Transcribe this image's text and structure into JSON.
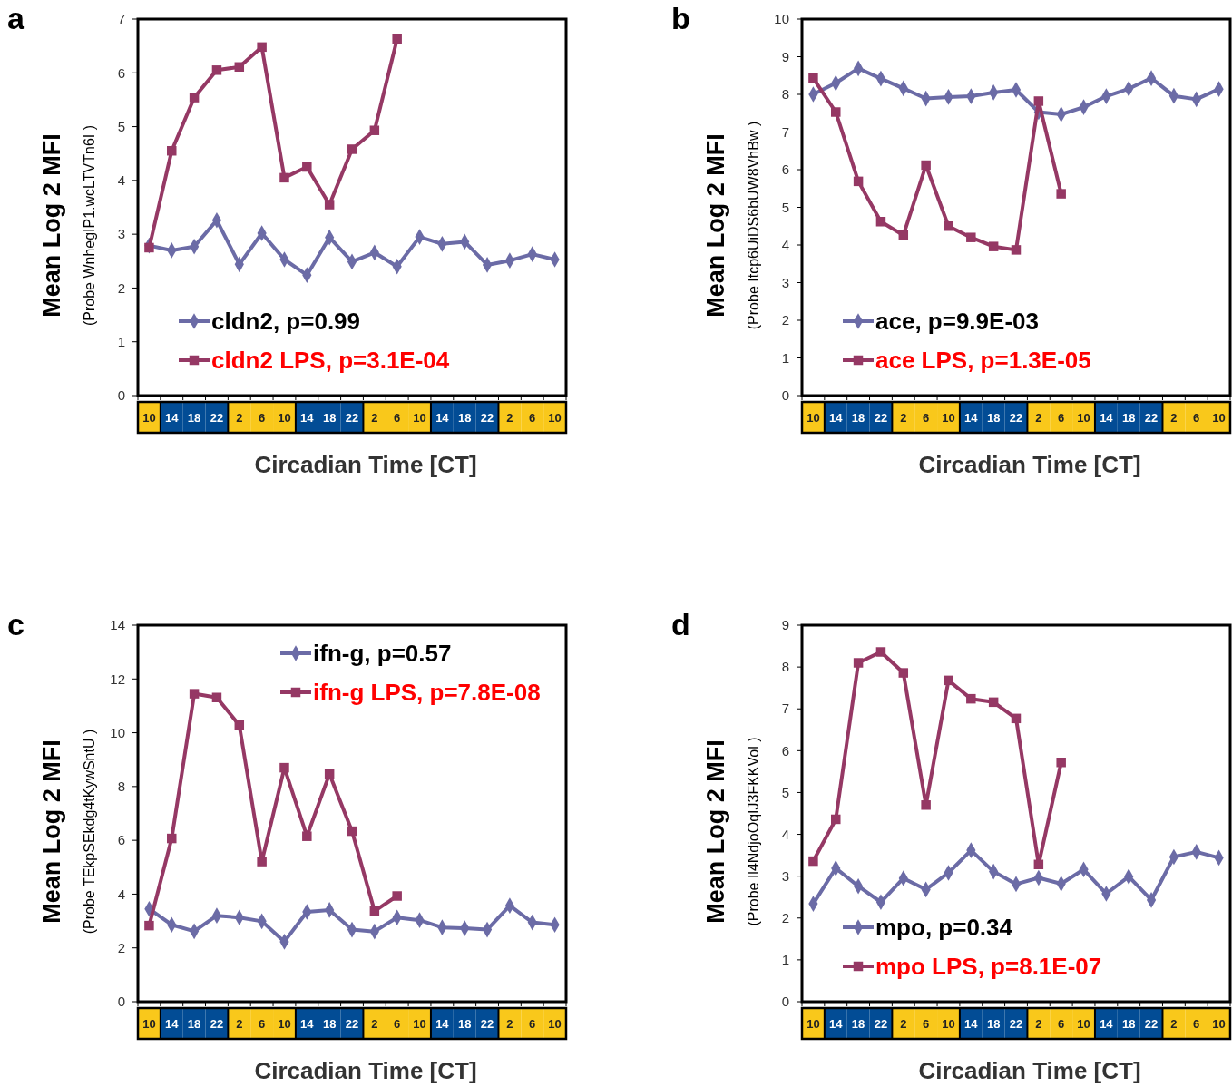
{
  "chart_data": [
    {
      "type": "line",
      "title": "a",
      "xlabel": "Circadian Time [CT]",
      "ylabel": "Mean Log 2 MFI\n(Probe WnhegIP1.wcLTVTn6I )",
      "categories": [
        "10",
        "14",
        "18",
        "22",
        "2",
        "6",
        "10",
        "14",
        "18",
        "22",
        "2",
        "6",
        "10",
        "14",
        "18",
        "22",
        "2",
        "6",
        "10"
      ],
      "series": [
        {
          "name": "cldn2, p=0.99",
          "color": "#6b6ba6",
          "marker": "diamond",
          "values": [
            2.79,
            2.7,
            2.77,
            3.26,
            2.44,
            3.02,
            2.53,
            2.24,
            2.94,
            2.49,
            2.66,
            2.4,
            2.95,
            2.82,
            2.86,
            2.43,
            2.51,
            2.63,
            2.53
          ]
        },
        {
          "name": "cldn2 LPS, p=3.1E-04",
          "color": "#953864",
          "marker": "square",
          "values": [
            2.75,
            4.55,
            5.54,
            6.05,
            6.11,
            6.48,
            4.05,
            4.25,
            3.55,
            4.58,
            4.93,
            6.63,
            null,
            null,
            null,
            null,
            null,
            null,
            null
          ]
        }
      ],
      "ylim": [
        0,
        7
      ],
      "yticks": [
        0,
        1,
        2,
        3,
        4,
        5,
        6,
        7
      ],
      "grid": false,
      "legend": "bottom left"
    },
    {
      "type": "line",
      "title": "b",
      "xlabel": "Circadian Time [CT]",
      "ylabel": "Mean Log 2 MFI\n(Probe Itcp6UiDS6bUW8VhBw )",
      "categories": [
        "10",
        "14",
        "18",
        "22",
        "2",
        "6",
        "10",
        "14",
        "18",
        "22",
        "2",
        "6",
        "10",
        "14",
        "18",
        "22",
        "2",
        "6",
        "10"
      ],
      "series": [
        {
          "name": "ace, p=9.9E-03",
          "color": "#6b6ba6",
          "marker": "diamond",
          "values": [
            8.0,
            8.3,
            8.69,
            8.42,
            8.16,
            7.89,
            7.93,
            7.95,
            8.05,
            8.12,
            7.53,
            7.47,
            7.66,
            7.95,
            8.15,
            8.43,
            7.96,
            7.87,
            8.14
          ]
        },
        {
          "name": "ace LPS, p=1.3E-05",
          "color": "#953864",
          "marker": "square",
          "values": [
            8.43,
            7.53,
            5.69,
            4.62,
            4.26,
            6.12,
            4.5,
            4.2,
            3.96,
            3.87,
            7.82,
            5.36,
            null,
            null,
            null,
            null,
            null,
            null,
            null
          ]
        }
      ],
      "ylim": [
        0,
        10
      ],
      "yticks": [
        0,
        1,
        2,
        3,
        4,
        5,
        6,
        7,
        8,
        9,
        10
      ],
      "grid": false,
      "legend": "bottom left"
    },
    {
      "type": "line",
      "title": "c",
      "xlabel": "Circadian Time [CT]",
      "ylabel": "Mean Log 2 MFI\n(Probe TEkpSEkdg4tKywSntU )",
      "categories": [
        "10",
        "14",
        "18",
        "22",
        "2",
        "6",
        "10",
        "14",
        "18",
        "22",
        "2",
        "6",
        "10",
        "14",
        "18",
        "22",
        "2",
        "6",
        "10"
      ],
      "series": [
        {
          "name": "ifn-g, p=0.57",
          "color": "#6b6ba6",
          "marker": "diamond",
          "values": [
            3.45,
            2.86,
            2.62,
            3.2,
            3.13,
            2.99,
            2.23,
            3.34,
            3.41,
            2.68,
            2.61,
            3.13,
            3.03,
            2.76,
            2.73,
            2.68,
            3.57,
            2.95,
            2.86
          ]
        },
        {
          "name": "ifn-g LPS, p=7.8E-08",
          "color": "#953864",
          "marker": "square",
          "values": [
            2.83,
            6.07,
            11.45,
            11.31,
            10.28,
            5.21,
            8.7,
            6.15,
            8.47,
            6.34,
            3.37,
            3.93,
            null,
            null,
            null,
            null,
            null,
            null,
            null
          ]
        }
      ],
      "ylim": [
        0,
        14
      ],
      "yticks": [
        0,
        2,
        4,
        6,
        8,
        10,
        12,
        14
      ],
      "grid": false,
      "legend": "top right"
    },
    {
      "type": "line",
      "title": "d",
      "xlabel": "Circadian Time [CT]",
      "ylabel": "Mean Log 2 MFI\n(Probe Il4NdjoOqIJ3FKKVol )",
      "categories": [
        "10",
        "14",
        "18",
        "22",
        "2",
        "6",
        "10",
        "14",
        "18",
        "22",
        "2",
        "6",
        "10",
        "14",
        "18",
        "22",
        "2",
        "6",
        "10"
      ],
      "series": [
        {
          "name": "mpo, p=0.34",
          "color": "#6b6ba6",
          "marker": "diamond",
          "values": [
            2.34,
            3.19,
            2.76,
            2.38,
            2.95,
            2.68,
            3.08,
            3.62,
            3.11,
            2.81,
            2.96,
            2.82,
            3.16,
            2.58,
            2.99,
            2.43,
            3.46,
            3.58,
            3.44
          ]
        },
        {
          "name": "mpo LPS, p=8.1E-07",
          "color": "#953864",
          "marker": "square",
          "values": [
            3.36,
            4.36,
            8.1,
            8.36,
            7.86,
            4.7,
            7.68,
            7.24,
            7.16,
            6.77,
            3.28,
            5.72,
            null,
            null,
            null,
            null,
            null,
            null,
            null
          ]
        }
      ],
      "ylim": [
        0,
        9
      ],
      "yticks": [
        0,
        1,
        2,
        3,
        4,
        5,
        6,
        7,
        8,
        9
      ],
      "grid": false,
      "legend": "bottom left"
    }
  ]
}
